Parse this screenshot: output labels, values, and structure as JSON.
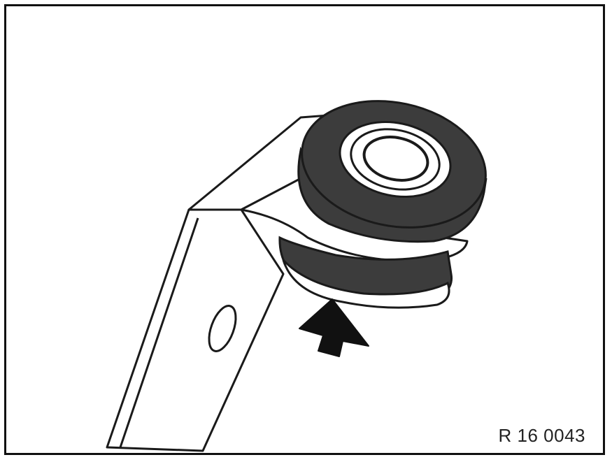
{
  "figure": {
    "reference_code": "R 16 0043",
    "colors": {
      "outline": "#1a1a1a",
      "rubber": "#3c3c3c",
      "metal": "#ffffff",
      "frame": "#111111"
    },
    "icons": [
      "bracket",
      "rubber-mount",
      "upward-arrow"
    ]
  }
}
